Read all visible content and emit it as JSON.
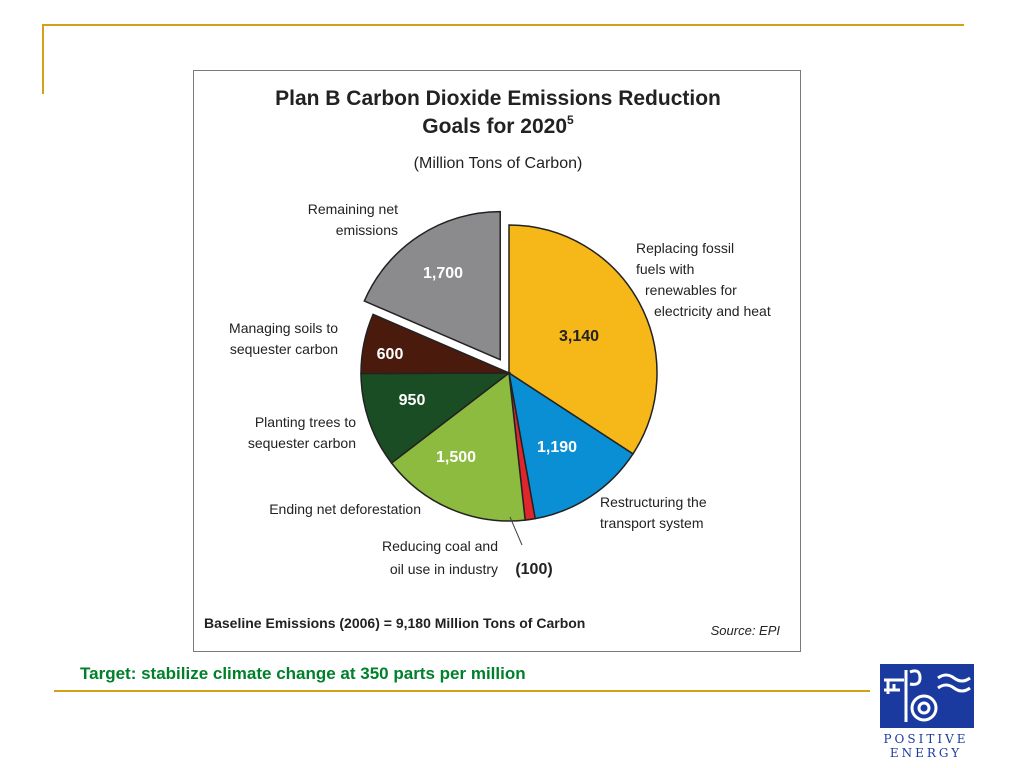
{
  "colors": {
    "accent_rule": "#d4a017",
    "footer_green": "#00802b",
    "logo_blue": "#1a3aa0"
  },
  "footer": {
    "text": "Target: stabilize climate change at 350 parts per million"
  },
  "logo": {
    "word1": "POSITIVE",
    "word2": "ENERGY"
  },
  "chart_data": {
    "type": "pie",
    "title_line1": "Plan B Carbon Dioxide Emissions Reduction",
    "title_line2": "Goals for 2020",
    "title_superscript": "5",
    "subtitle": "(Million Tons of Carbon)",
    "baseline_note": "Baseline Emissions (2006) = 9,180 Million Tons of Carbon",
    "source": "Source: EPI",
    "slices": [
      {
        "key": "fossil",
        "value": 3140,
        "value_label": "3,140",
        "label_lines": [
          "Replacing fossil",
          "fuels with",
          "renewables for",
          "electricity and heat"
        ],
        "color": "#f6b719",
        "value_text_color": "#222222"
      },
      {
        "key": "transport",
        "value": 1190,
        "value_label": "1,190",
        "label_lines": [
          "Restructuring the",
          "transport system"
        ],
        "color": "#0a8ed4",
        "value_text_color": "#ffffff"
      },
      {
        "key": "coal",
        "value": 100,
        "value_label": "(100)",
        "label_lines": [
          "Reducing coal and",
          "oil use in industry"
        ],
        "color": "#e0262c",
        "value_text_color": "#222222"
      },
      {
        "key": "deforestation",
        "value": 1500,
        "value_label": "1,500",
        "label_lines": [
          "Ending net deforestation"
        ],
        "color": "#8dbb3f",
        "value_text_color": "#ffffff"
      },
      {
        "key": "trees",
        "value": 950,
        "value_label": "950",
        "label_lines": [
          "Planting trees to",
          "sequester carbon"
        ],
        "color": "#1b4d24",
        "value_text_color": "#ffffff"
      },
      {
        "key": "soils",
        "value": 600,
        "value_label": "600",
        "label_lines": [
          "Managing soils to",
          "sequester carbon"
        ],
        "color": "#4a1a0c",
        "value_text_color": "#ffffff"
      },
      {
        "key": "remaining",
        "value": 1700,
        "value_label": "1,700",
        "label_lines": [
          "Remaining net",
          "emissions"
        ],
        "color": "#8b8b8d",
        "value_text_color": "#ffffff",
        "exploded": true
      }
    ]
  }
}
